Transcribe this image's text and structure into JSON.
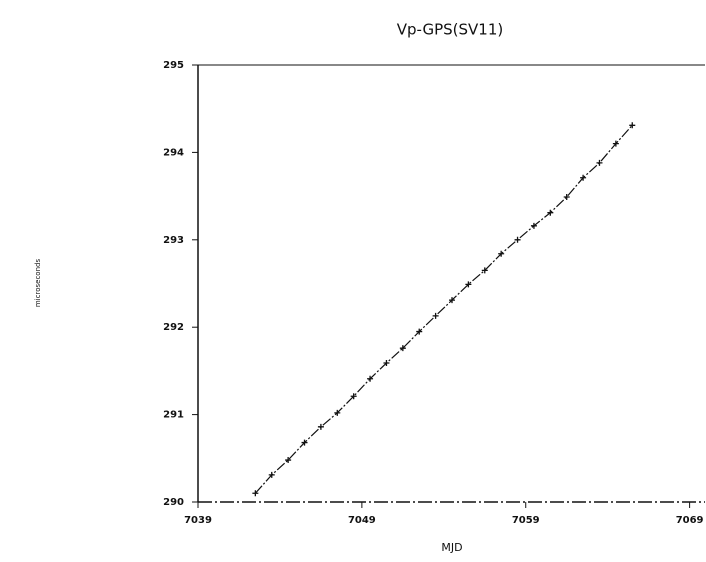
{
  "chart_data": {
    "type": "line",
    "title": "Vp-GPS(SV11)",
    "x_label": "MJD",
    "y_label": "microseconds",
    "x": [
      7042.5,
      7043.5,
      7044.5,
      7045.5,
      7046.5,
      7047.5,
      7048.5,
      7049.5,
      7050.5,
      7051.5,
      7052.5,
      7053.5,
      7054.5,
      7055.5,
      7056.5,
      7057.5,
      7058.5,
      7059.5,
      7060.5,
      7061.5,
      7062.5,
      7063.5,
      7064.5,
      7065.5
    ],
    "series": [
      {
        "name": "Vp-GPS",
        "color": "#111111",
        "values": [
          290.1,
          290.31,
          290.48,
          290.68,
          290.86,
          291.02,
          291.21,
          291.41,
          291.59,
          291.76,
          291.95,
          292.13,
          292.31,
          292.49,
          292.65,
          292.84,
          293.0,
          293.16,
          293.31,
          293.49,
          293.71,
          293.88,
          294.1,
          294.31
        ]
      }
    ],
    "xlim": [
      7039,
      7070
    ],
    "xticks": [
      7039,
      7049,
      7059,
      7069
    ],
    "ylim": [
      290,
      295
    ],
    "yticks": [
      290,
      291,
      292,
      293,
      294,
      295
    ]
  }
}
